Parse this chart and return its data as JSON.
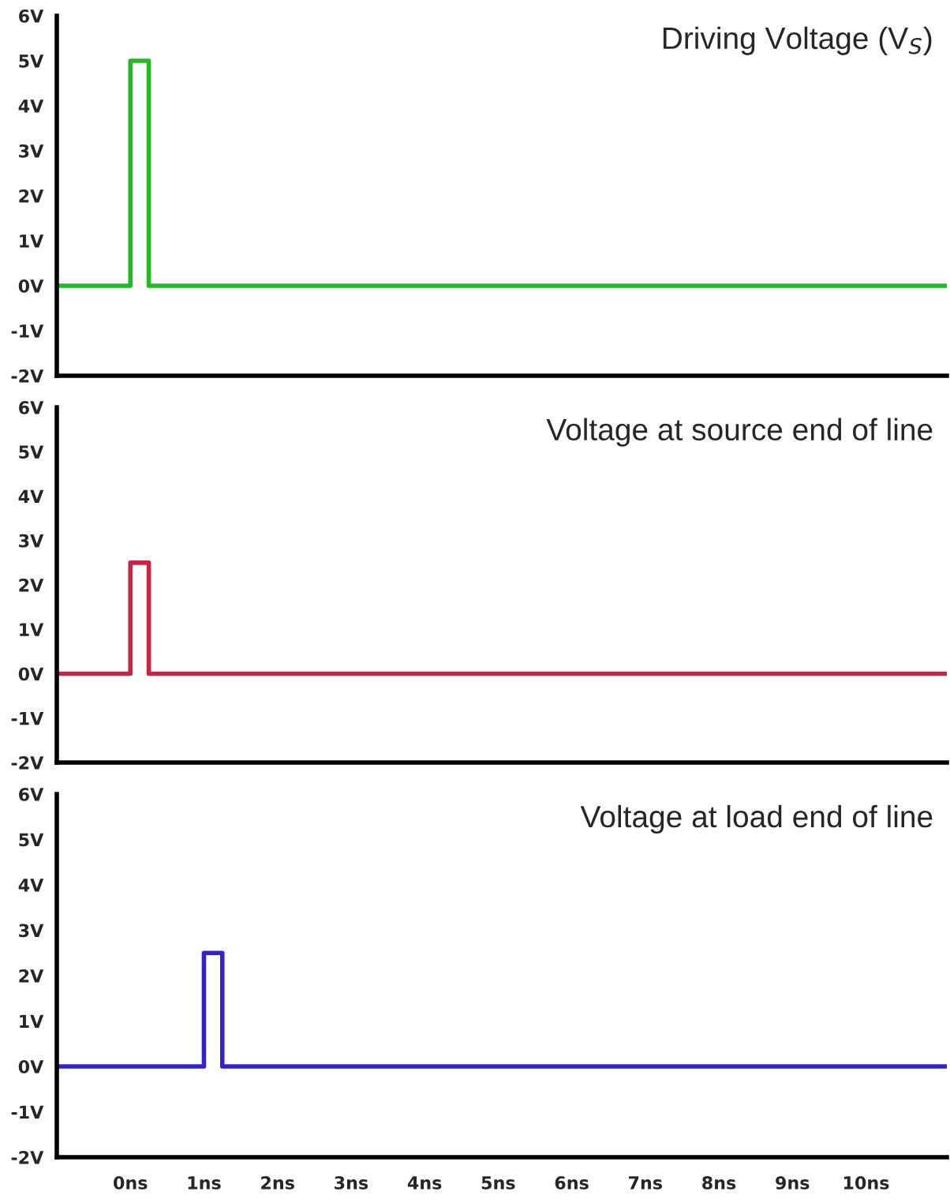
{
  "chart_data": [
    {
      "type": "line",
      "title": "Driving Voltage (V$_{S}$)",
      "tick_labels": "y",
      "xlim": [
        -1,
        11.1
      ],
      "ylim": [
        -2,
        6
      ],
      "yticks": [
        {
          "value": -2,
          "label": "-2V"
        },
        {
          "value": -1,
          "label": "-1V"
        },
        {
          "value": 0,
          "label": "0V"
        },
        {
          "value": 1,
          "label": "1V"
        },
        {
          "value": 2,
          "label": "2V"
        },
        {
          "value": 3,
          "label": "3V"
        },
        {
          "value": 4,
          "label": "4V"
        },
        {
          "value": 5,
          "label": "5V"
        },
        {
          "value": 6,
          "label": "6V"
        }
      ],
      "series": [
        {
          "color": "#22bb22",
          "x": [
            -1,
            0,
            0,
            0.25,
            0.25,
            11.1
          ],
          "values": [
            0,
            0,
            5,
            5,
            0,
            0
          ]
        }
      ]
    },
    {
      "type": "line",
      "title": "Voltage at source end of line",
      "tick_labels": "y",
      "xlim": [
        -1,
        11.1
      ],
      "ylim": [
        -2,
        6
      ],
      "yticks": [
        {
          "value": -2,
          "label": "-2V"
        },
        {
          "value": -1,
          "label": "-1V"
        },
        {
          "value": 0,
          "label": "0V"
        },
        {
          "value": 1,
          "label": "1V"
        },
        {
          "value": 2,
          "label": "2V"
        },
        {
          "value": 3,
          "label": "3V"
        },
        {
          "value": 4,
          "label": "4V"
        },
        {
          "value": 5,
          "label": "5V"
        },
        {
          "value": 6,
          "label": "6V"
        }
      ],
      "series": [
        {
          "color": "#cc2244",
          "x": [
            -1,
            0,
            0,
            0.25,
            0.25,
            11.1
          ],
          "values": [
            0,
            0,
            2.5,
            2.5,
            0,
            0
          ]
        }
      ]
    },
    {
      "type": "line",
      "title": "Voltage at load end of line",
      "xlim": [
        -1,
        11.1
      ],
      "ylim": [
        -2,
        6
      ],
      "xticks": [
        {
          "value": -1,
          "label": null
        },
        {
          "value": 0,
          "label": "0ns"
        },
        {
          "value": 1,
          "label": "1ns"
        },
        {
          "value": 2,
          "label": "2ns"
        },
        {
          "value": 3,
          "label": "3ns"
        },
        {
          "value": 4,
          "label": "4ns"
        },
        {
          "value": 5,
          "label": "5ns"
        },
        {
          "value": 6,
          "label": "6ns"
        },
        {
          "value": 7,
          "label": "7ns"
        },
        {
          "value": 8,
          "label": "8ns"
        },
        {
          "value": 9,
          "label": "9ns"
        },
        {
          "value": 10,
          "label": "10ns"
        }
      ],
      "yticks": [
        {
          "value": -2,
          "label": "-2V"
        },
        {
          "value": -1,
          "label": "-1V"
        },
        {
          "value": 0,
          "label": "0V"
        },
        {
          "value": 1,
          "label": "1V"
        },
        {
          "value": 2,
          "label": "2V"
        },
        {
          "value": 3,
          "label": "3V"
        },
        {
          "value": 4,
          "label": "4V"
        },
        {
          "value": 5,
          "label": "5V"
        },
        {
          "value": 6,
          "label": "6V"
        }
      ],
      "series": [
        {
          "color": "#3322cc",
          "x": [
            -1,
            1,
            1,
            1.25,
            1.25,
            11.1
          ],
          "values": [
            0,
            0,
            2.5,
            2.5,
            0,
            0
          ]
        }
      ]
    }
  ]
}
